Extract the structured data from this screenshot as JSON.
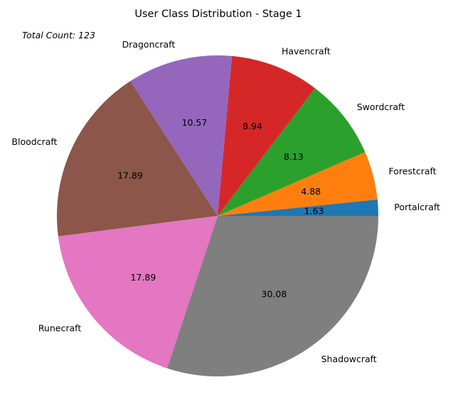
{
  "chart_data": {
    "type": "pie",
    "title": "User Class Distribution - Stage 1",
    "annotation": "Total Count: 123",
    "categories": [
      "Portalcraft",
      "Forestcraft",
      "Swordcraft",
      "Havencraft",
      "Dragoncraft",
      "Bloodcraft",
      "Runecraft",
      "Shadowcraft"
    ],
    "values": [
      1.63,
      4.88,
      8.13,
      8.94,
      10.57,
      17.89,
      17.89,
      30.08
    ],
    "value_labels": [
      "1.63",
      "4.88",
      "8.13",
      "8.94",
      "10.57",
      "17.89",
      "17.89",
      "30.08"
    ],
    "colors": [
      "#1f77b4",
      "#ff7f0e",
      "#2ca02c",
      "#d62728",
      "#9467bd",
      "#8c564b",
      "#e377c2",
      "#7f7f7f"
    ],
    "start_angle_deg": 0,
    "direction": "counterclockwise",
    "legend": "none"
  }
}
